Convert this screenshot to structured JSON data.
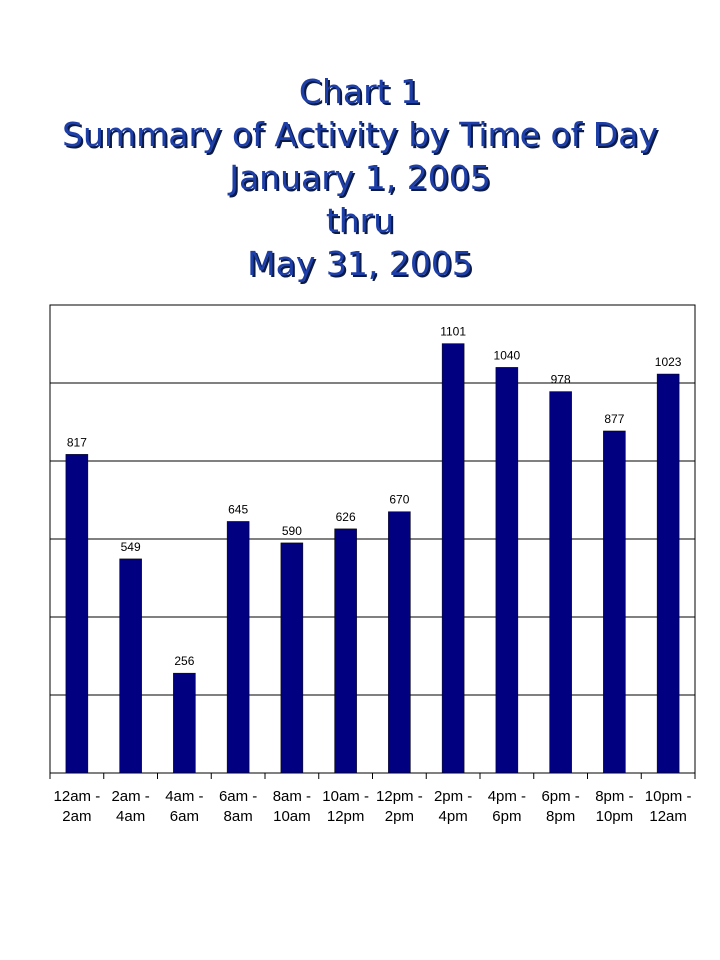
{
  "chart_data": {
    "type": "bar",
    "title_lines": [
      "Chart 1",
      "Summary of Activity by Time of Day",
      "January 1, 2005",
      "thru",
      "May 31, 2005"
    ],
    "categories": [
      [
        "12am -",
        "2am"
      ],
      [
        "2am -",
        "4am"
      ],
      [
        "4am -",
        "6am"
      ],
      [
        "6am -",
        "8am"
      ],
      [
        "8am -",
        "10am"
      ],
      [
        "10am -",
        "12pm"
      ],
      [
        "12pm -",
        "2pm"
      ],
      [
        "2pm -",
        "4pm"
      ],
      [
        "4pm -",
        "6pm"
      ],
      [
        "6pm -",
        "8pm"
      ],
      [
        "8pm -",
        "10pm"
      ],
      [
        "10pm -",
        "12am"
      ]
    ],
    "values": [
      817,
      549,
      256,
      645,
      590,
      626,
      670,
      1101,
      1040,
      978,
      877,
      1023
    ],
    "ylim": [
      0,
      1200
    ],
    "ytick_step": 200,
    "show_y_tick_labels": false,
    "grid": true,
    "legend": "none",
    "bar_color": "#000080",
    "title_color": "#1f3fa8"
  }
}
